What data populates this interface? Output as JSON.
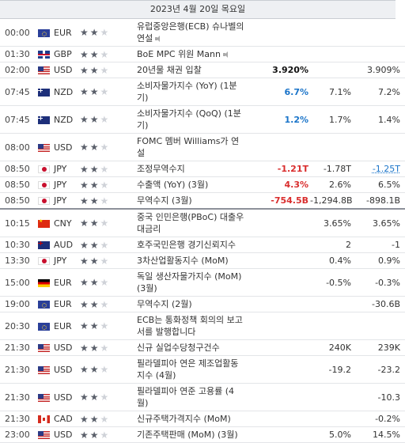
{
  "header": {
    "date": "2023년 4월 20일 목요일"
  },
  "rows": [
    {
      "time": "00:00",
      "country": "eu",
      "currency": "EUR",
      "stars": 2,
      "event": "유럽중앙은행(ECB) 슈나벨의 연설",
      "speaker": true,
      "actual": "",
      "actual_tone": "neu",
      "forecast": "",
      "previous": "",
      "h": 31,
      "sep": false
    },
    {
      "time": "01:30",
      "country": "gb",
      "currency": "GBP",
      "stars": 2,
      "event": "BoE MPC 위원 Mann",
      "speaker": true,
      "actual": "",
      "actual_tone": "neu",
      "forecast": "",
      "previous": "",
      "h": 20,
      "sep": false
    },
    {
      "time": "02:00",
      "country": "us",
      "currency": "USD",
      "stars": 2,
      "event": "20년물 채권 입찰",
      "speaker": false,
      "actual": "3.920%",
      "actual_tone": "neu",
      "forecast": "",
      "previous": "3.909%",
      "h": 20,
      "sep": false
    },
    {
      "time": "07:45",
      "country": "nz",
      "currency": "NZD",
      "stars": 2,
      "event": "소비자물가지수 (YoY) (1분기)",
      "speaker": false,
      "actual": "6.7%",
      "actual_tone": "pos",
      "forecast": "7.1%",
      "previous": "7.2%",
      "h": 20,
      "sep": false
    },
    {
      "time": "07:45",
      "country": "nz",
      "currency": "NZD",
      "stars": 2,
      "event": "소비자물가지수 (QoQ) (1분기)",
      "speaker": false,
      "actual": "1.2%",
      "actual_tone": "pos",
      "forecast": "1.7%",
      "previous": "1.4%",
      "h": 20,
      "sep": false
    },
    {
      "time": "08:00",
      "country": "us",
      "currency": "USD",
      "stars": 2,
      "event": "FOMC 멤버 Williams가 연설",
      "speaker": false,
      "actual": "",
      "actual_tone": "neu",
      "forecast": "",
      "previous": "",
      "h": 31,
      "sep": false
    },
    {
      "time": "08:50",
      "country": "jp",
      "currency": "JPY",
      "stars": 2,
      "event": "조정무역수지",
      "speaker": false,
      "actual": "-1.21T",
      "actual_tone": "neg",
      "forecast": "-1.78T",
      "previous": "-1.25T",
      "prev_rev": true,
      "h": 20,
      "sep": false
    },
    {
      "time": "08:50",
      "country": "jp",
      "currency": "JPY",
      "stars": 2,
      "event": "수출액 (YoY) (3월)",
      "speaker": false,
      "actual": "4.3%",
      "actual_tone": "neg",
      "forecast": "2.6%",
      "previous": "6.5%",
      "h": 20,
      "sep": false
    },
    {
      "time": "08:50",
      "country": "jp",
      "currency": "JPY",
      "stars": 2,
      "event": "무역수지 (3월)",
      "speaker": false,
      "actual": "-754.5B",
      "actual_tone": "neg",
      "forecast": "-1,294.8B",
      "previous": "-898.1B",
      "h": 20,
      "sep": true
    },
    {
      "time": "10:15",
      "country": "cn",
      "currency": "CNY",
      "stars": 2,
      "event": "중국 인민은행(PBoC) 대출우대금리",
      "speaker": false,
      "actual": "",
      "actual_tone": "neu",
      "forecast": "3.65%",
      "previous": "3.65%",
      "h": 31,
      "sep": false
    },
    {
      "time": "10:30",
      "country": "au",
      "currency": "AUD",
      "stars": 2,
      "event": "호주국민은행 경기신뢰지수",
      "speaker": false,
      "actual": "",
      "actual_tone": "neu",
      "forecast": "2",
      "previous": "-1",
      "h": 20,
      "sep": false
    },
    {
      "time": "13:30",
      "country": "jp",
      "currency": "JPY",
      "stars": 2,
      "event": "3차산업활동지수 (MoM)",
      "speaker": false,
      "actual": "",
      "actual_tone": "neu",
      "forecast": "0.4%",
      "previous": "0.9%",
      "h": 20,
      "sep": false
    },
    {
      "time": "15:00",
      "country": "de",
      "currency": "EUR",
      "stars": 2,
      "event": "독일 생산자물가지수 (MoM) (3월)",
      "speaker": false,
      "actual": "",
      "actual_tone": "neu",
      "forecast": "-0.5%",
      "previous": "-0.3%",
      "h": 31,
      "sep": false
    },
    {
      "time": "19:00",
      "country": "eu",
      "currency": "EUR",
      "stars": 2,
      "event": "무역수지 (2월)",
      "speaker": false,
      "actual": "",
      "actual_tone": "neu",
      "forecast": "",
      "previous": "-30.6B",
      "h": 20,
      "sep": false
    },
    {
      "time": "20:30",
      "country": "eu",
      "currency": "EUR",
      "stars": 2,
      "event": "ECB는 통화정책 회의의 보고서를 발행합니다",
      "speaker": false,
      "actual": "",
      "actual_tone": "neu",
      "forecast": "",
      "previous": "",
      "h": 31,
      "sep": false
    },
    {
      "time": "21:30",
      "country": "us",
      "currency": "USD",
      "stars": 2,
      "event": "신규 실업수당청구건수",
      "speaker": false,
      "actual": "",
      "actual_tone": "neu",
      "forecast": "240K",
      "previous": "239K",
      "h": 20,
      "sep": false
    },
    {
      "time": "21:30",
      "country": "us",
      "currency": "USD",
      "stars": 2,
      "event": "필라델피아 연은 제조업활동지수 (4월)",
      "speaker": false,
      "actual": "",
      "actual_tone": "neu",
      "forecast": "-19.2",
      "previous": "-23.2",
      "h": 31,
      "sep": false
    },
    {
      "time": "21:30",
      "country": "us",
      "currency": "USD",
      "stars": 2,
      "event": "필라델피아 연준 고용률 (4월)",
      "speaker": false,
      "actual": "",
      "actual_tone": "neu",
      "forecast": "",
      "previous": "-10.3",
      "h": 20,
      "sep": false
    },
    {
      "time": "21:30",
      "country": "ca",
      "currency": "CAD",
      "stars": 2,
      "event": "신규주택가격지수 (MoM)",
      "speaker": false,
      "actual": "",
      "actual_tone": "neu",
      "forecast": "",
      "previous": "-0.2%",
      "h": 20,
      "sep": false
    },
    {
      "time": "23:00",
      "country": "us",
      "currency": "USD",
      "stars": 2,
      "event": "기존주택판매 (MoM) (3월)",
      "speaker": false,
      "actual": "",
      "actual_tone": "neu",
      "forecast": "5.0%",
      "previous": "14.5%",
      "h": 20,
      "sep": false
    }
  ]
}
